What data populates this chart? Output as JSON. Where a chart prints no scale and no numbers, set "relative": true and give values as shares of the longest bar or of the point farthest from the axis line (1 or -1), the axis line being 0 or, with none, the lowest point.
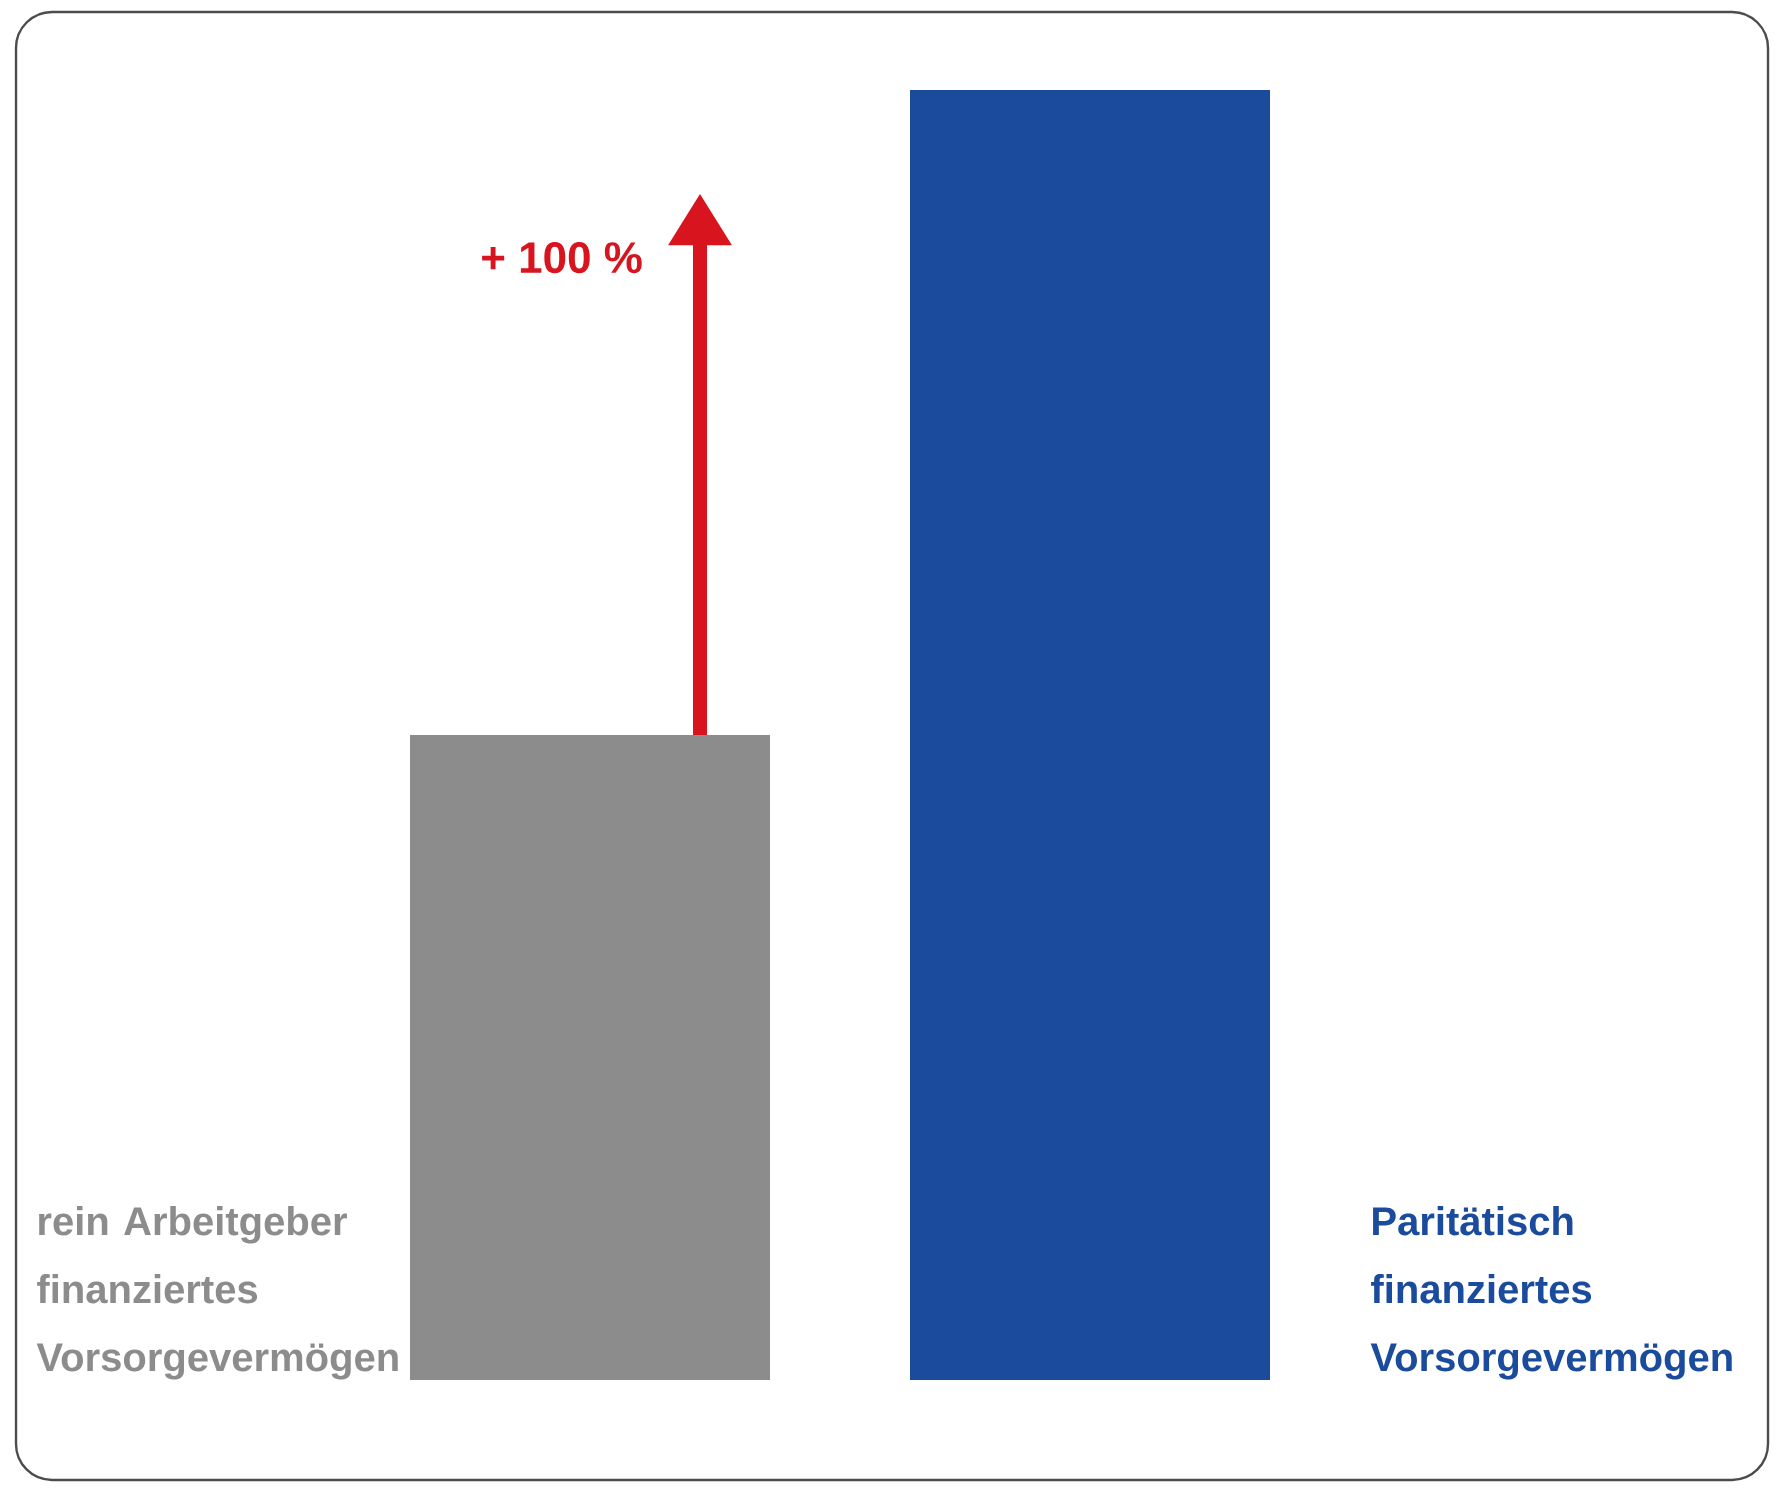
{
  "chart_data": {
    "type": "bar",
    "relative": true,
    "categories": [
      "rein Arbeitgeber finanziertes Vorsorgevermögen",
      "Paritätisch finanziertes Vorsorgevermögen"
    ],
    "values": [
      0.5,
      1
    ],
    "colors": [
      "#8c8c8c",
      "#1a4b9c"
    ],
    "annotations": [
      "+ 100 %"
    ]
  }
}
